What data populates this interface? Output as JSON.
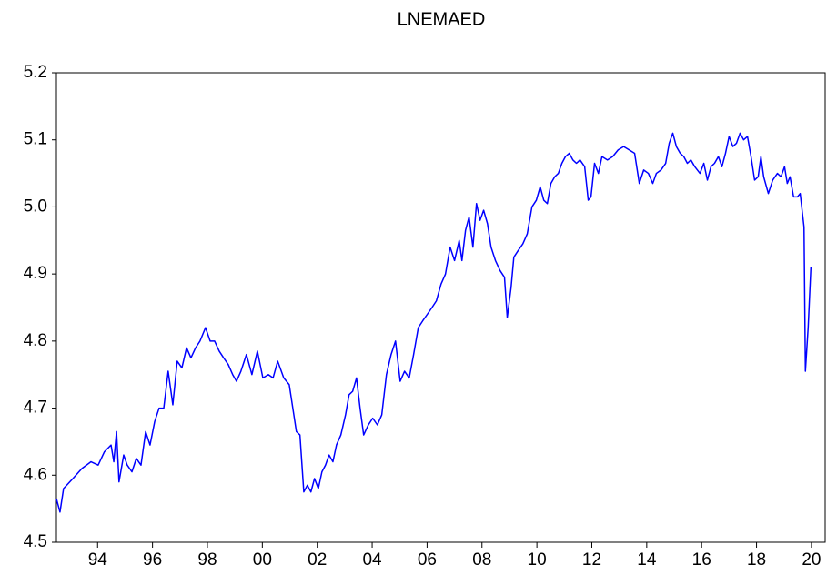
{
  "chart_data": {
    "type": "line",
    "title": "LNEMAED",
    "color": "#0000ff",
    "x": [
      1993.0,
      1993.13,
      1993.26,
      1993.6,
      1993.93,
      1994.26,
      1994.52,
      1994.75,
      1994.99,
      1995.09,
      1995.19,
      1995.28,
      1995.45,
      1995.58,
      1995.75,
      1995.91,
      1996.08,
      1996.25,
      1996.41,
      1996.58,
      1996.74,
      1996.91,
      1997.07,
      1997.24,
      1997.4,
      1997.57,
      1997.74,
      1997.9,
      1998.07,
      1998.23,
      1998.43,
      1998.6,
      1998.76,
      1998.93,
      1999.09,
      1999.26,
      1999.42,
      1999.56,
      1999.72,
      1999.92,
      2000.12,
      2000.32,
      2000.52,
      2000.72,
      2000.89,
      2001.06,
      2001.28,
      2001.48,
      2001.61,
      2001.74,
      2001.87,
      2002.01,
      2002.14,
      2002.27,
      2002.4,
      2002.54,
      2002.67,
      2002.8,
      2002.93,
      2003.07,
      2003.2,
      2003.36,
      2003.53,
      2003.66,
      2003.79,
      2003.93,
      2004.06,
      2004.19,
      2004.36,
      2004.52,
      2004.69,
      2004.85,
      2005.02,
      2005.19,
      2005.35,
      2005.52,
      2005.68,
      2005.85,
      2006.01,
      2006.18,
      2006.34,
      2006.51,
      2006.68,
      2006.84,
      2007.01,
      2007.17,
      2007.34,
      2007.5,
      2007.67,
      2007.77,
      2007.9,
      2008.03,
      2008.17,
      2008.3,
      2008.43,
      2008.56,
      2008.7,
      2008.83,
      2008.99,
      2009.16,
      2009.32,
      2009.42,
      2009.56,
      2009.66,
      2009.82,
      2009.99,
      2010.15,
      2010.32,
      2010.48,
      2010.62,
      2010.75,
      2010.88,
      2011.01,
      2011.15,
      2011.28,
      2011.41,
      2011.54,
      2011.68,
      2011.81,
      2011.94,
      2012.07,
      2012.24,
      2012.37,
      2012.47,
      2012.6,
      2012.74,
      2012.87,
      2013.07,
      2013.26,
      2013.46,
      2013.66,
      2013.86,
      2014.06,
      2014.23,
      2014.39,
      2014.56,
      2014.72,
      2014.85,
      2015.02,
      2015.19,
      2015.32,
      2015.45,
      2015.58,
      2015.72,
      2015.85,
      2015.98,
      2016.11,
      2016.25,
      2016.44,
      2016.58,
      2016.71,
      2016.84,
      2016.97,
      2017.11,
      2017.24,
      2017.37,
      2017.5,
      2017.64,
      2017.77,
      2017.9,
      2018.03,
      2018.17,
      2018.3,
      2018.43,
      2018.56,
      2018.66,
      2018.76,
      2018.93,
      2019.09,
      2019.26,
      2019.39,
      2019.52,
      2019.62,
      2019.72,
      2019.85,
      2019.99,
      2020.09,
      2020.23,
      2020.28,
      2020.38,
      2020.48
    ],
    "values": [
      4.565,
      4.545,
      4.58,
      4.595,
      4.61,
      4.62,
      4.615,
      4.635,
      4.645,
      4.62,
      4.665,
      4.59,
      4.63,
      4.615,
      4.605,
      4.625,
      4.615,
      4.665,
      4.645,
      4.68,
      4.7,
      4.7,
      4.755,
      4.705,
      4.77,
      4.76,
      4.79,
      4.775,
      4.79,
      4.8,
      4.82,
      4.8,
      4.8,
      4.785,
      4.775,
      4.765,
      4.75,
      4.74,
      4.755,
      4.78,
      4.75,
      4.785,
      4.745,
      4.75,
      4.745,
      4.77,
      4.745,
      4.735,
      4.7,
      4.665,
      4.66,
      4.575,
      4.585,
      4.575,
      4.595,
      4.58,
      4.605,
      4.615,
      4.63,
      4.62,
      4.645,
      4.66,
      4.69,
      4.72,
      4.725,
      4.745,
      4.7,
      4.66,
      4.675,
      4.685,
      4.675,
      4.69,
      4.75,
      4.78,
      4.8,
      4.74,
      4.755,
      4.745,
      4.78,
      4.82,
      4.83,
      4.84,
      4.85,
      4.86,
      4.885,
      4.9,
      4.94,
      4.92,
      4.95,
      4.92,
      4.965,
      4.985,
      4.94,
      5.005,
      4.98,
      4.995,
      4.975,
      4.94,
      4.92,
      4.905,
      4.895,
      4.835,
      4.88,
      4.925,
      4.935,
      4.945,
      4.96,
      5.0,
      5.01,
      5.03,
      5.01,
      5.005,
      5.035,
      5.045,
      5.05,
      5.065,
      5.075,
      5.08,
      5.07,
      5.065,
      5.07,
      5.06,
      5.01,
      5.015,
      5.065,
      5.05,
      5.075,
      5.07,
      5.075,
      5.085,
      5.09,
      5.085,
      5.08,
      5.035,
      5.055,
      5.05,
      5.035,
      5.05,
      5.055,
      5.065,
      5.095,
      5.11,
      5.09,
      5.08,
      5.075,
      5.065,
      5.07,
      5.06,
      5.05,
      5.065,
      5.04,
      5.06,
      5.065,
      5.075,
      5.06,
      5.08,
      5.105,
      5.09,
      5.095,
      5.11,
      5.1,
      5.105,
      5.075,
      5.04,
      5.045,
      5.075,
      5.045,
      5.02,
      5.04,
      5.05,
      5.045,
      5.06,
      5.035,
      5.045,
      5.015,
      5.015,
      5.02,
      4.97,
      4.755,
      4.82,
      4.91
    ],
    "xlim": [
      1993,
      2021
    ],
    "xticks": [
      {
        "value": 1994.5,
        "label": "94"
      },
      {
        "value": 1996.5,
        "label": "96"
      },
      {
        "value": 1998.5,
        "label": "98"
      },
      {
        "value": 2000.5,
        "label": "00"
      },
      {
        "value": 2002.5,
        "label": "02"
      },
      {
        "value": 2004.5,
        "label": "04"
      },
      {
        "value": 2006.5,
        "label": "06"
      },
      {
        "value": 2008.5,
        "label": "08"
      },
      {
        "value": 2010.5,
        "label": "10"
      },
      {
        "value": 2012.5,
        "label": "12"
      },
      {
        "value": 2014.5,
        "label": "14"
      },
      {
        "value": 2016.5,
        "label": "16"
      },
      {
        "value": 2018.5,
        "label": "18"
      },
      {
        "value": 2020.5,
        "label": "20"
      }
    ],
    "ylim": [
      4.5,
      5.2
    ],
    "yticks": [
      4.5,
      4.6,
      4.7,
      4.8,
      4.9,
      {
        "value": 5,
        "label": "5.0"
      },
      5.1,
      5.2
    ],
    "grid": false
  }
}
